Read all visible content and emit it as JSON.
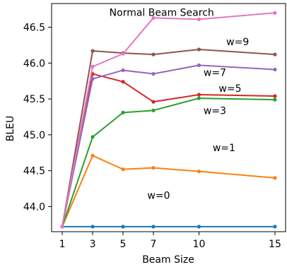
{
  "chart_data": {
    "type": "line",
    "xlabel": "Beam Size",
    "ylabel": "BLEU",
    "x": [
      1,
      3,
      5,
      7,
      10,
      15
    ],
    "xticks": [
      "1",
      "3",
      "5",
      "7",
      "10",
      "15"
    ],
    "yticks": [
      "44.0",
      "44.5",
      "45.0",
      "45.5",
      "46.0",
      "46.5"
    ],
    "ylim": [
      43.65,
      46.83
    ],
    "xlim": [
      0.3,
      15.7
    ],
    "grid": false,
    "legend": "none",
    "series": [
      {
        "name": "w=0",
        "color": "#1f77b4",
        "values": [
          43.72,
          43.72,
          43.72,
          43.72,
          43.72,
          43.72
        ],
        "annotation_at": [
          6.6,
          44.11
        ]
      },
      {
        "name": "w=1",
        "color": "#ff7f0e",
        "values": [
          43.72,
          44.71,
          44.52,
          44.54,
          44.49,
          44.4
        ],
        "annotation_at": [
          10.9,
          44.77
        ]
      },
      {
        "name": "w=3",
        "color": "#2ca02c",
        "values": [
          43.72,
          44.97,
          45.31,
          45.34,
          45.51,
          45.49
        ],
        "annotation_at": [
          10.3,
          45.29
        ]
      },
      {
        "name": "w=5",
        "color": "#d62728",
        "values": [
          43.72,
          45.85,
          45.74,
          45.46,
          45.56,
          45.54
        ],
        "annotation_at": [
          11.3,
          45.6
        ]
      },
      {
        "name": "w=7",
        "color": "#9467bd",
        "values": [
          43.72,
          45.78,
          45.9,
          45.85,
          45.97,
          45.91
        ],
        "annotation_at": [
          10.3,
          45.82
        ]
      },
      {
        "name": "w=9",
        "color": "#8c564b",
        "values": [
          43.72,
          46.17,
          46.14,
          46.12,
          46.19,
          46.12
        ],
        "annotation_at": [
          11.8,
          46.25
        ]
      },
      {
        "name": "Normal Beam Search",
        "color": "#e377c2",
        "values": [
          43.72,
          45.95,
          46.13,
          46.63,
          46.61,
          46.7
        ],
        "annotation_at": [
          4.1,
          46.66
        ]
      }
    ]
  }
}
